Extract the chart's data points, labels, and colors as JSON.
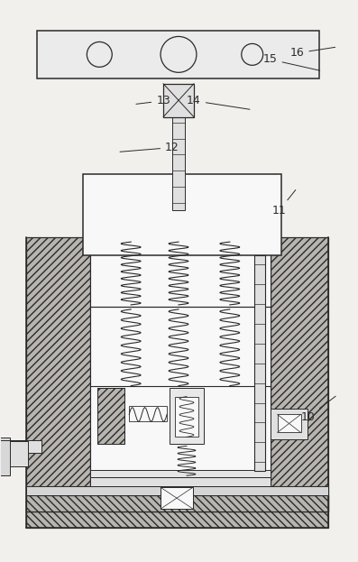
{
  "fig_width": 3.97,
  "fig_height": 6.23,
  "dpi": 100,
  "bg_color": "#f2f0ed",
  "line_color": "#2a2a2a",
  "hatch_fc": "#b8b5b0",
  "inner_fc": "#f8f8f8",
  "plate_fc": "#ebebeb"
}
